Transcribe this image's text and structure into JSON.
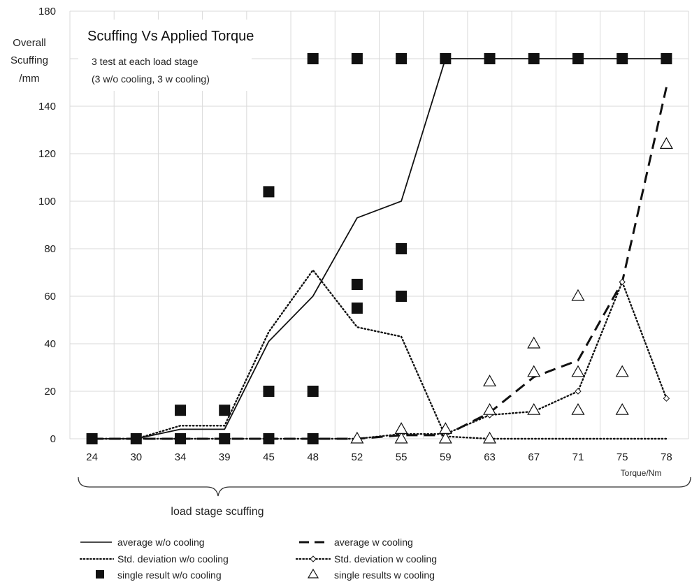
{
  "chart_data": {
    "type": "line",
    "title": "Scuffing Vs Applied Torque",
    "subtitle_lines": [
      "3 test at each load stage",
      "(3 w/o cooling, 3 w cooling)"
    ],
    "ylabel_lines": [
      "Overall",
      "Scuffing",
      "/mm"
    ],
    "xlabel": "Torque/Nm",
    "ylim": [
      0,
      180
    ],
    "yticks": [
      0,
      20,
      40,
      60,
      80,
      100,
      120,
      140,
      180
    ],
    "grid": true,
    "categories": [
      "24",
      "30",
      "34",
      "39",
      "45",
      "48",
      "52",
      "55",
      "59",
      "63",
      "67",
      "71",
      "75",
      "78"
    ],
    "brace_label": "load stage scuffing",
    "series": [
      {
        "name": "average w/o cooling",
        "style": "solid",
        "values": [
          0,
          0,
          4,
          4,
          41,
          60,
          93,
          100,
          160,
          160,
          160,
          160,
          160,
          160
        ]
      },
      {
        "name": "average w cooling",
        "style": "dash",
        "values": [
          0,
          0,
          0,
          0,
          0,
          0,
          0,
          1.5,
          1.5,
          11,
          26,
          33,
          66,
          148
        ]
      },
      {
        "name": "Std. deviation w/o cooling",
        "style": "dot",
        "values": [
          0,
          0,
          5.5,
          5.5,
          45,
          71,
          47,
          43,
          1,
          0,
          0,
          0,
          0,
          0
        ]
      },
      {
        "name": "Std. deviation w cooling",
        "style": "dot-diamond",
        "values": [
          0,
          0,
          0,
          0,
          0,
          0,
          0,
          2,
          2,
          10,
          11.5,
          20,
          66,
          17
        ]
      },
      {
        "name": "single result w/o cooling",
        "style": "square",
        "points": [
          [
            0,
            0
          ],
          [
            1,
            0
          ],
          [
            2,
            0
          ],
          [
            2,
            12
          ],
          [
            3,
            0
          ],
          [
            3,
            12
          ],
          [
            4,
            0
          ],
          [
            4,
            20
          ],
          [
            4,
            104
          ],
          [
            5,
            0
          ],
          [
            5,
            20
          ],
          [
            5,
            160
          ],
          [
            6,
            55
          ],
          [
            6,
            65
          ],
          [
            6,
            160
          ],
          [
            7,
            60
          ],
          [
            7,
            80
          ],
          [
            7,
            160
          ],
          [
            8,
            160
          ],
          [
            9,
            160
          ],
          [
            10,
            160
          ],
          [
            11,
            160
          ],
          [
            12,
            160
          ],
          [
            13,
            160
          ]
        ]
      },
      {
        "name": "single results w cooling",
        "style": "triangle",
        "points": [
          [
            6,
            0
          ],
          [
            7,
            0
          ],
          [
            7,
            4
          ],
          [
            8,
            0
          ],
          [
            8,
            4
          ],
          [
            9,
            0
          ],
          [
            9,
            12
          ],
          [
            9,
            24
          ],
          [
            10,
            12
          ],
          [
            10,
            28
          ],
          [
            10,
            40
          ],
          [
            11,
            12
          ],
          [
            11,
            28
          ],
          [
            11,
            60
          ],
          [
            12,
            12
          ],
          [
            12,
            28
          ],
          [
            13,
            124
          ]
        ]
      }
    ]
  }
}
